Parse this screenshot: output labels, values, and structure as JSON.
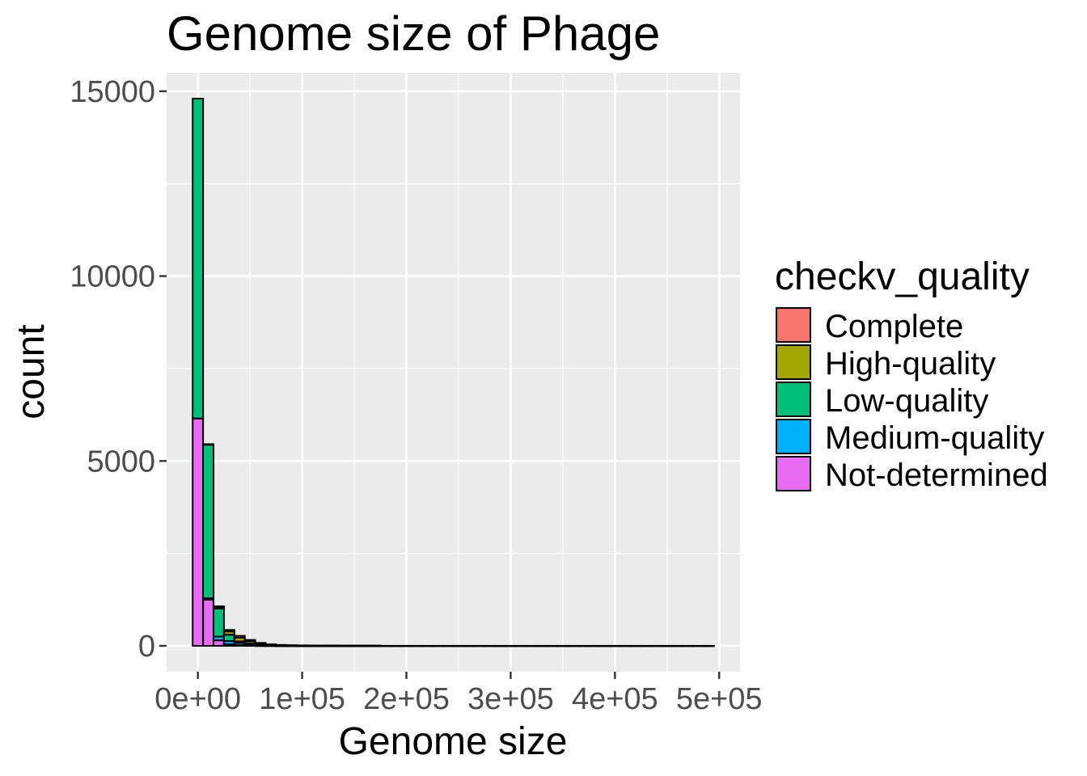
{
  "chart_data": {
    "type": "bar",
    "title": "Genome size of Phage",
    "xlabel": "Genome size",
    "ylabel": "count",
    "stacked": true,
    "bin_width": 10000,
    "xlim": [
      -30000,
      520000
    ],
    "ylim": [
      -700,
      15500
    ],
    "x_ticks": [
      0,
      100000,
      200000,
      300000,
      400000,
      500000
    ],
    "x_tick_labels": [
      "0e+00",
      "1e+05",
      "2e+05",
      "3e+05",
      "4e+05",
      "5e+05"
    ],
    "y_ticks": [
      0,
      5000,
      10000,
      15000
    ],
    "y_tick_labels": [
      "0",
      "5000",
      "10000",
      "15000"
    ],
    "grid": true,
    "legend_title": "checkv_quality",
    "legend_position": "right",
    "bin_centers": [
      0,
      10000,
      20000,
      30000,
      40000,
      50000,
      60000,
      70000,
      80000,
      90000,
      100000,
      110000,
      120000,
      130000,
      140000,
      150000,
      160000,
      170000,
      180000,
      190000,
      200000,
      210000,
      220000,
      230000,
      240000,
      250000,
      260000,
      270000,
      280000,
      290000,
      300000,
      310000,
      320000,
      330000,
      340000,
      350000,
      360000,
      370000,
      380000,
      390000,
      400000,
      410000,
      420000,
      430000,
      440000,
      450000,
      460000,
      470000,
      480000,
      490000
    ],
    "series": [
      {
        "name": "Complete",
        "color": "#F8766D",
        "values": [
          0,
          5,
          20,
          40,
          50,
          40,
          20,
          10,
          5,
          3,
          2,
          2,
          1,
          1,
          1,
          1,
          1,
          1,
          0,
          0,
          0,
          0,
          0,
          0,
          0,
          0,
          0,
          0,
          0,
          0,
          0,
          0,
          0,
          0,
          0,
          0,
          0,
          0,
          0,
          0,
          0,
          0,
          0,
          0,
          0,
          0,
          0,
          0,
          0,
          0
        ]
      },
      {
        "name": "High-quality",
        "color": "#A3A500",
        "values": [
          0,
          10,
          40,
          90,
          100,
          60,
          25,
          10,
          5,
          3,
          2,
          2,
          1,
          1,
          1,
          1,
          1,
          1,
          0,
          0,
          0,
          0,
          0,
          0,
          0,
          0,
          0,
          0,
          0,
          0,
          0,
          0,
          0,
          0,
          0,
          0,
          0,
          0,
          0,
          0,
          0,
          0,
          0,
          0,
          0,
          0,
          0,
          0,
          0,
          0
        ]
      },
      {
        "name": "Low-quality",
        "color": "#00BF7D",
        "values": [
          8650,
          4150,
          760,
          170,
          40,
          20,
          15,
          10,
          8,
          6,
          5,
          4,
          3,
          3,
          2,
          2,
          2,
          1,
          1,
          1,
          1,
          1,
          1,
          1,
          1,
          1,
          1,
          1,
          1,
          1,
          1,
          1,
          1,
          1,
          1,
          1,
          1,
          1,
          1,
          1,
          1,
          1,
          1,
          1,
          1,
          1,
          1,
          1,
          1,
          1
        ]
      },
      {
        "name": "Medium-quality",
        "color": "#00B0F6",
        "values": [
          0,
          40,
          100,
          90,
          60,
          30,
          15,
          8,
          5,
          3,
          2,
          2,
          1,
          1,
          1,
          1,
          1,
          1,
          0,
          0,
          0,
          0,
          0,
          0,
          0,
          0,
          0,
          0,
          0,
          0,
          0,
          0,
          0,
          0,
          0,
          0,
          0,
          0,
          0,
          0,
          0,
          0,
          0,
          0,
          0,
          0,
          0,
          0,
          0,
          0
        ]
      },
      {
        "name": "Not-determined",
        "color": "#E76BF3",
        "values": [
          6150,
          1250,
          150,
          40,
          20,
          10,
          5,
          3,
          2,
          2,
          1,
          1,
          1,
          1,
          1,
          1,
          1,
          1,
          0,
          0,
          0,
          0,
          0,
          0,
          0,
          0,
          0,
          0,
          0,
          0,
          0,
          0,
          0,
          0,
          0,
          0,
          0,
          0,
          0,
          0,
          0,
          0,
          0,
          0,
          0,
          0,
          0,
          0,
          0,
          0
        ]
      }
    ],
    "panel_background": "#EBEBEB",
    "grid_color": "#FFFFFF",
    "bar_outline": "#000000"
  }
}
